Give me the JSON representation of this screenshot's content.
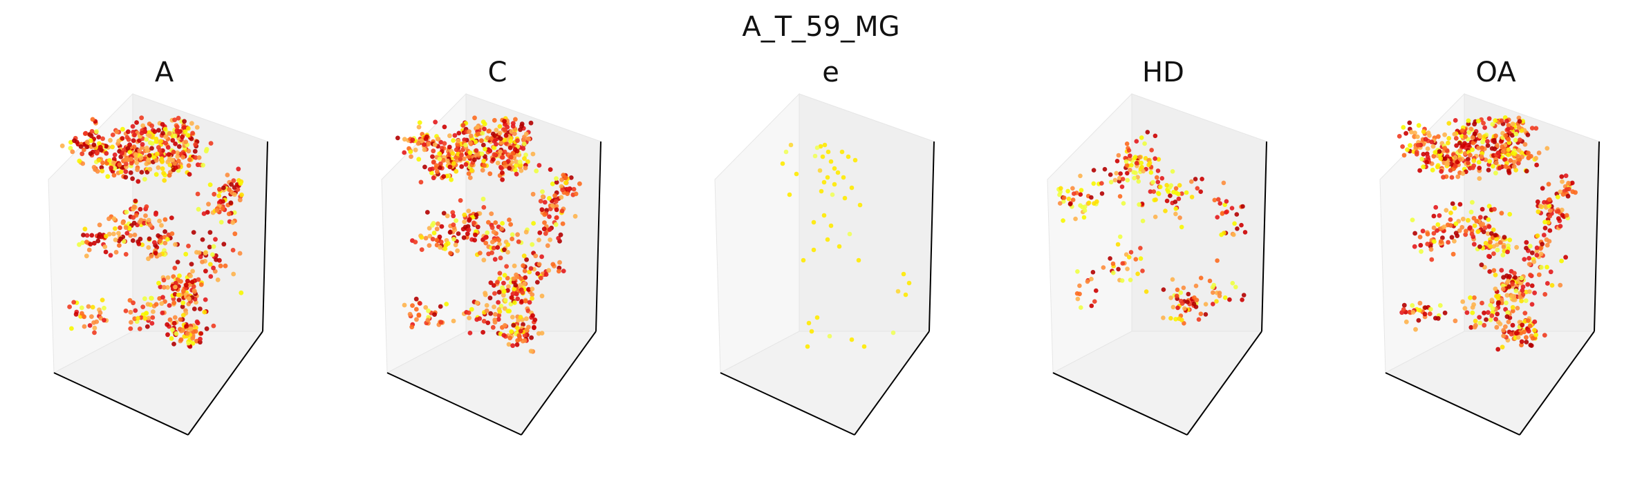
{
  "figure": {
    "suptitle": "A_T_59_MG"
  },
  "chart_data": {
    "type": "scatter3d",
    "title": "A_T_59_MG",
    "colormap": "hot (red → orange → yellow)",
    "grid": false,
    "axis_ticks": false,
    "panels": [
      {
        "title": "A",
        "density": "high"
      },
      {
        "title": "C",
        "density": "high"
      },
      {
        "title": "e",
        "density": "sparse"
      },
      {
        "title": "HD",
        "density": "medium"
      },
      {
        "title": "OA",
        "density": "high"
      }
    ],
    "colors": {
      "pane_left": "#f7f7f7",
      "pane_back": "#efefef",
      "pane_floor": "#f2f2f2",
      "axis_line": "#000000",
      "pane_edge": "#e6e6e6"
    }
  }
}
